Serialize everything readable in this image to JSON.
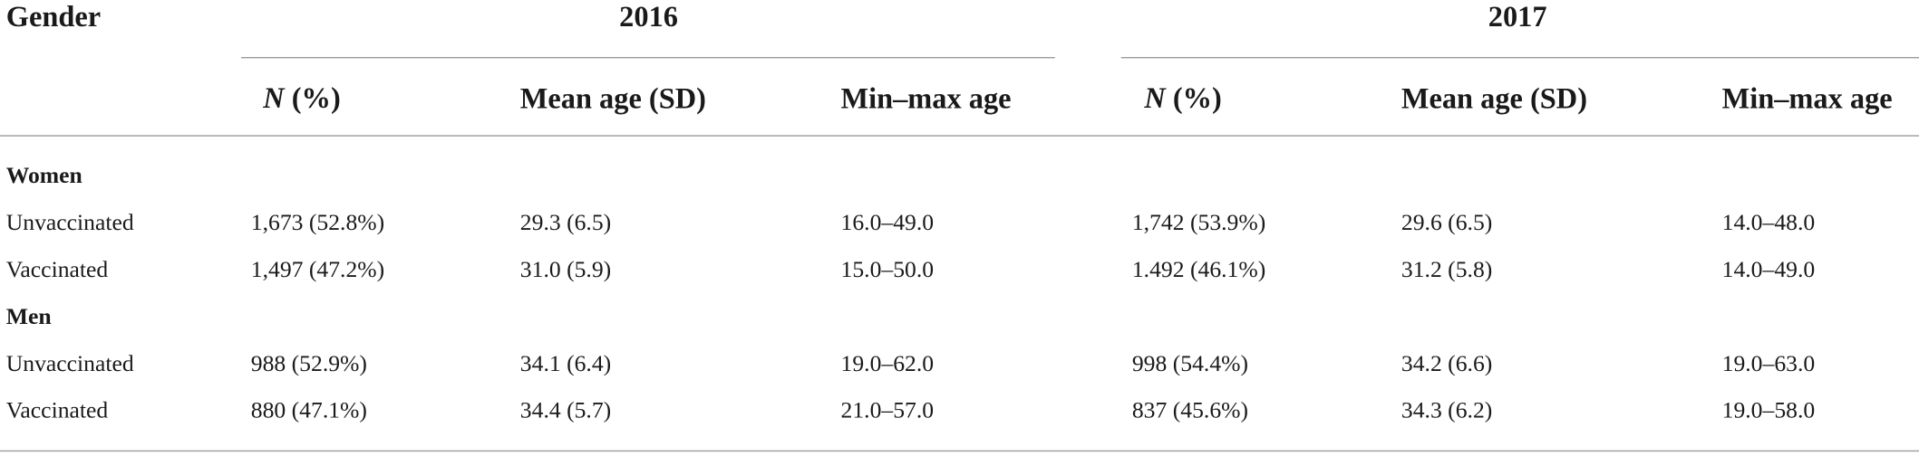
{
  "header": {
    "first": "Gender",
    "groups": [
      {
        "year": "2016",
        "columns": [
          "N (%)",
          "Mean age (SD)",
          "Min–max age"
        ]
      },
      {
        "year": "2017",
        "columns": [
          "N (%)",
          "Mean age (SD)",
          "Min–max age"
        ]
      }
    ]
  },
  "sections": [
    {
      "label": "Women",
      "rows": [
        [
          "Unvaccinated",
          "1,673 (52.8%)",
          "29.3 (6.5)",
          "16.0–49.0",
          "1,742 (53.9%)",
          "29.6 (6.5)",
          "14.0–48.0"
        ],
        [
          "Vaccinated",
          "1,497 (47.2%)",
          "31.0 (5.9)",
          "15.0–50.0",
          "1.492 (46.1%)",
          "31.2 (5.8)",
          "14.0–49.0"
        ]
      ]
    },
    {
      "label": "Men",
      "rows": [
        [
          "Unvaccinated",
          "988 (52.9%)",
          "34.1 (6.4)",
          "19.0–62.0",
          "998 (54.4%)",
          "34.2 (6.6)",
          "19.0–63.0"
        ],
        [
          "Vaccinated",
          "880 (47.1%)",
          "34.4 (5.7)",
          "21.0–57.0",
          "837 (45.6%)",
          "34.3 (6.2)",
          "19.0–58.0"
        ]
      ]
    }
  ]
}
